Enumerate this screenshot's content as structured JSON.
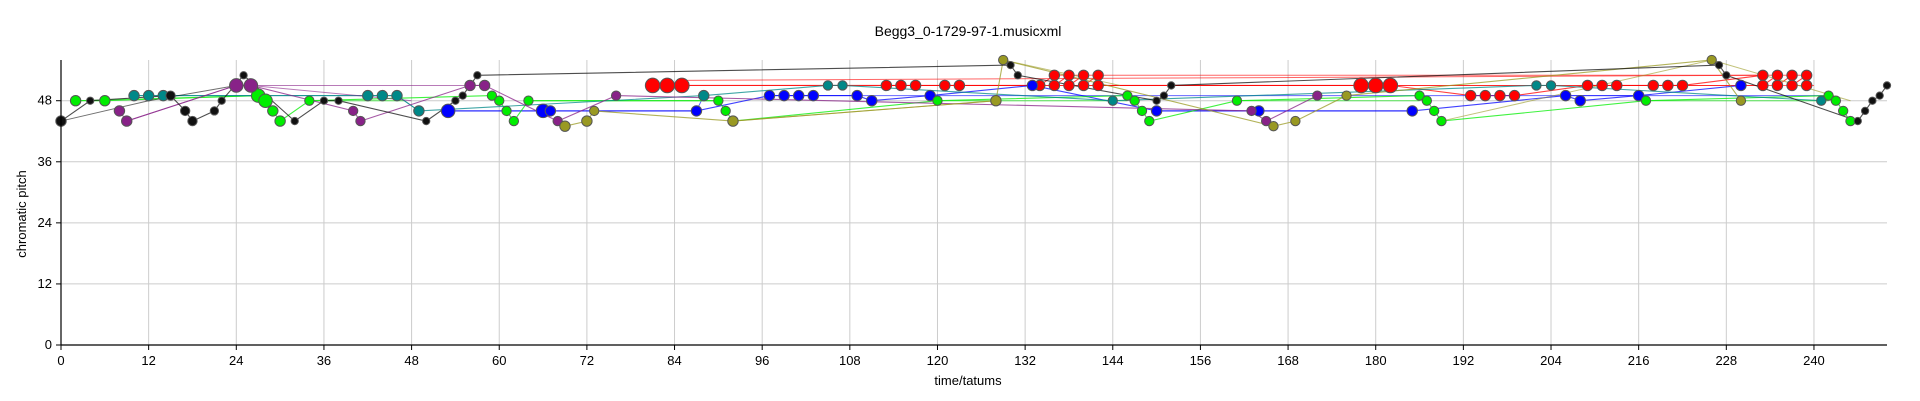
{
  "chart_data": {
    "type": "scatter",
    "title": "Begg3_0-1729-97-1.musicxml",
    "xlabel": "time/tatums",
    "ylabel": "chromatic pitch",
    "xlim": [
      0,
      250
    ],
    "ylim": [
      0,
      56
    ],
    "xticks": [
      0,
      12,
      24,
      36,
      48,
      60,
      72,
      84,
      96,
      108,
      120,
      132,
      144,
      156,
      168,
      180,
      192,
      204,
      216,
      228,
      240
    ],
    "yticks": [
      0,
      12,
      24,
      36,
      48
    ],
    "grid": true,
    "legend": "none",
    "colors": {
      "grid": "#cccccc",
      "axis": "#000000",
      "marker_edge": "#555555"
    },
    "series": [
      {
        "color": "#ff0000",
        "points": [
          {
            "x": 81,
            "y": 51,
            "s": 1.4
          },
          {
            "x": 83,
            "y": 51,
            "s": 1.4
          },
          {
            "x": 85,
            "y": 51,
            "s": 1.4
          },
          {
            "x": 113,
            "y": 51,
            "s": 1
          },
          {
            "x": 115,
            "y": 51,
            "s": 1
          },
          {
            "x": 117,
            "y": 51,
            "s": 1
          },
          {
            "x": 121,
            "y": 51,
            "s": 1
          },
          {
            "x": 123,
            "y": 51,
            "s": 1
          },
          {
            "x": 136,
            "y": 53,
            "s": 1
          },
          {
            "x": 138,
            "y": 53,
            "s": 1
          },
          {
            "x": 140,
            "y": 53,
            "s": 1
          },
          {
            "x": 142,
            "y": 53,
            "s": 1
          },
          {
            "x": 134,
            "y": 51,
            "s": 1
          },
          {
            "x": 136,
            "y": 51,
            "s": 1
          },
          {
            "x": 138,
            "y": 51,
            "s": 1
          },
          {
            "x": 140,
            "y": 51,
            "s": 1
          },
          {
            "x": 142,
            "y": 51,
            "s": 1
          },
          {
            "x": 178,
            "y": 51,
            "s": 1.4
          },
          {
            "x": 180,
            "y": 51,
            "s": 1.4
          },
          {
            "x": 182,
            "y": 51,
            "s": 1.4
          },
          {
            "x": 193,
            "y": 49,
            "s": 1
          },
          {
            "x": 195,
            "y": 49,
            "s": 1
          },
          {
            "x": 197,
            "y": 49,
            "s": 1
          },
          {
            "x": 199,
            "y": 49,
            "s": 1
          },
          {
            "x": 209,
            "y": 51,
            "s": 1
          },
          {
            "x": 211,
            "y": 51,
            "s": 1
          },
          {
            "x": 213,
            "y": 51,
            "s": 1
          },
          {
            "x": 218,
            "y": 51,
            "s": 1
          },
          {
            "x": 220,
            "y": 51,
            "s": 1
          },
          {
            "x": 222,
            "y": 51,
            "s": 1
          },
          {
            "x": 233,
            "y": 53,
            "s": 1
          },
          {
            "x": 235,
            "y": 53,
            "s": 1
          },
          {
            "x": 237,
            "y": 53,
            "s": 1
          },
          {
            "x": 239,
            "y": 53,
            "s": 1
          },
          {
            "x": 233,
            "y": 51,
            "s": 1
          },
          {
            "x": 235,
            "y": 51,
            "s": 1
          },
          {
            "x": 237,
            "y": 51,
            "s": 1
          },
          {
            "x": 239,
            "y": 51,
            "s": 1
          }
        ],
        "links": [
          [
            81,
            51,
            240,
            51
          ],
          [
            85,
            52,
            233,
            53
          ],
          [
            136,
            53,
            239,
            53
          ],
          [
            113,
            51,
            233,
            51
          ]
        ]
      },
      {
        "color": "#0000ff",
        "points": [
          {
            "x": 53,
            "y": 46,
            "s": 1.3
          },
          {
            "x": 66,
            "y": 46,
            "s": 1.3
          },
          {
            "x": 67,
            "y": 46,
            "s": 1
          },
          {
            "x": 87,
            "y": 46,
            "s": 1
          },
          {
            "x": 97,
            "y": 49,
            "s": 1
          },
          {
            "x": 99,
            "y": 49,
            "s": 1
          },
          {
            "x": 101,
            "y": 49,
            "s": 1
          },
          {
            "x": 103,
            "y": 49,
            "s": 1
          },
          {
            "x": 109,
            "y": 49,
            "s": 1
          },
          {
            "x": 111,
            "y": 48,
            "s": 1
          },
          {
            "x": 119,
            "y": 49,
            "s": 1
          },
          {
            "x": 133,
            "y": 51,
            "s": 1
          },
          {
            "x": 150,
            "y": 46,
            "s": 1
          },
          {
            "x": 164,
            "y": 46,
            "s": 1
          },
          {
            "x": 185,
            "y": 46,
            "s": 1
          },
          {
            "x": 206,
            "y": 49,
            "s": 1
          },
          {
            "x": 208,
            "y": 48,
            "s": 1
          },
          {
            "x": 216,
            "y": 49,
            "s": 1
          },
          {
            "x": 230,
            "y": 51,
            "s": 1
          }
        ],
        "links": [
          [
            53,
            46,
            87,
            46
          ],
          [
            87,
            46,
            88,
            49
          ],
          [
            97,
            49,
            119,
            49
          ],
          [
            150,
            46,
            185,
            46
          ],
          [
            119,
            49,
            216,
            49
          ],
          [
            206,
            49,
            242,
            49
          ]
        ]
      },
      {
        "color": "#00ee00",
        "points": [
          {
            "x": 2,
            "y": 48,
            "s": 1
          },
          {
            "x": 6,
            "y": 48,
            "s": 1
          },
          {
            "x": 27,
            "y": 49,
            "s": 1.3
          },
          {
            "x": 28,
            "y": 48,
            "s": 1.3
          },
          {
            "x": 29,
            "y": 46,
            "s": 1
          },
          {
            "x": 30,
            "y": 44,
            "s": 1
          },
          {
            "x": 34,
            "y": 48,
            "s": 0.9
          },
          {
            "x": 59,
            "y": 49,
            "s": 0.9
          },
          {
            "x": 60,
            "y": 48,
            "s": 0.9
          },
          {
            "x": 61,
            "y": 46,
            "s": 0.9
          },
          {
            "x": 62,
            "y": 44,
            "s": 0.9
          },
          {
            "x": 64,
            "y": 48,
            "s": 0.9
          },
          {
            "x": 90,
            "y": 48,
            "s": 0.9
          },
          {
            "x": 91,
            "y": 46,
            "s": 0.9
          },
          {
            "x": 92,
            "y": 44,
            "s": 0.9
          },
          {
            "x": 120,
            "y": 48,
            "s": 0.9
          },
          {
            "x": 146,
            "y": 49,
            "s": 0.9
          },
          {
            "x": 147,
            "y": 48,
            "s": 0.9
          },
          {
            "x": 148,
            "y": 46,
            "s": 0.9
          },
          {
            "x": 149,
            "y": 44,
            "s": 0.9
          },
          {
            "x": 161,
            "y": 48,
            "s": 0.9
          },
          {
            "x": 186,
            "y": 49,
            "s": 0.9
          },
          {
            "x": 187,
            "y": 48,
            "s": 0.9
          },
          {
            "x": 188,
            "y": 46,
            "s": 0.9
          },
          {
            "x": 189,
            "y": 44,
            "s": 0.9
          },
          {
            "x": 217,
            "y": 48,
            "s": 0.9
          },
          {
            "x": 242,
            "y": 49,
            "s": 0.9
          },
          {
            "x": 243,
            "y": 48,
            "s": 0.9
          },
          {
            "x": 244,
            "y": 46,
            "s": 0.9
          },
          {
            "x": 245,
            "y": 44,
            "s": 0.9
          }
        ],
        "links": [
          [
            2,
            48,
            27,
            49
          ],
          [
            34,
            48,
            47,
            48
          ],
          [
            64,
            48,
            90,
            48
          ],
          [
            120,
            48,
            146,
            48
          ],
          [
            161,
            48,
            186,
            48
          ],
          [
            217,
            48,
            242,
            48
          ]
        ]
      },
      {
        "color": "#008888",
        "points": [
          {
            "x": 10,
            "y": 49,
            "s": 1
          },
          {
            "x": 12,
            "y": 49,
            "s": 1
          },
          {
            "x": 14,
            "y": 49,
            "s": 1
          },
          {
            "x": 42,
            "y": 49,
            "s": 1
          },
          {
            "x": 44,
            "y": 49,
            "s": 1
          },
          {
            "x": 46,
            "y": 49,
            "s": 1
          },
          {
            "x": 49,
            "y": 46,
            "s": 1
          },
          {
            "x": 88,
            "y": 49,
            "s": 1
          },
          {
            "x": 105,
            "y": 51,
            "s": 0.9
          },
          {
            "x": 107,
            "y": 51,
            "s": 0.9
          },
          {
            "x": 144,
            "y": 48,
            "s": 0.9
          },
          {
            "x": 202,
            "y": 51,
            "s": 0.9
          },
          {
            "x": 204,
            "y": 51,
            "s": 0.9
          },
          {
            "x": 241,
            "y": 48,
            "s": 0.9
          }
        ],
        "links": [
          [
            10,
            49,
            46,
            49
          ],
          [
            46,
            49,
            49,
            46
          ]
        ]
      },
      {
        "color": "#882288",
        "points": [
          {
            "x": 8,
            "y": 46,
            "s": 1
          },
          {
            "x": 9,
            "y": 44,
            "s": 1
          },
          {
            "x": 24,
            "y": 51,
            "s": 1.3
          },
          {
            "x": 26,
            "y": 51,
            "s": 1.3
          },
          {
            "x": 40,
            "y": 46,
            "s": 0.9
          },
          {
            "x": 41,
            "y": 44,
            "s": 0.9
          },
          {
            "x": 56,
            "y": 51,
            "s": 1
          },
          {
            "x": 58,
            "y": 51,
            "s": 1
          },
          {
            "x": 68,
            "y": 44,
            "s": 0.9
          },
          {
            "x": 76,
            "y": 49,
            "s": 0.9
          },
          {
            "x": 163,
            "y": 46,
            "s": 0.9
          },
          {
            "x": 165,
            "y": 44,
            "s": 0.9
          },
          {
            "x": 172,
            "y": 49,
            "s": 0.9
          }
        ],
        "links": [
          [
            9,
            44,
            24,
            51
          ],
          [
            26,
            51,
            48,
            48
          ],
          [
            24,
            51,
            58,
            51
          ]
        ]
      },
      {
        "color": "#999922",
        "points": [
          {
            "x": 69,
            "y": 43,
            "s": 1
          },
          {
            "x": 72,
            "y": 44,
            "s": 1
          },
          {
            "x": 73,
            "y": 46,
            "s": 0.9
          },
          {
            "x": 92,
            "y": 44,
            "s": 1
          },
          {
            "x": 128,
            "y": 48,
            "s": 1
          },
          {
            "x": 129,
            "y": 56,
            "s": 0.9
          },
          {
            "x": 166,
            "y": 43,
            "s": 0.9
          },
          {
            "x": 169,
            "y": 44,
            "s": 0.9
          },
          {
            "x": 176,
            "y": 49,
            "s": 0.9
          },
          {
            "x": 226,
            "y": 56,
            "s": 0.9
          },
          {
            "x": 230,
            "y": 48,
            "s": 0.9
          }
        ],
        "links": [
          [
            92,
            44,
            128,
            48
          ],
          [
            129,
            56,
            145,
            51
          ],
          [
            189,
            44,
            226,
            56
          ],
          [
            226,
            56,
            245,
            48
          ]
        ]
      },
      {
        "color": "#111111",
        "points": [
          {
            "x": 0,
            "y": 44,
            "s": 1
          },
          {
            "x": 4,
            "y": 48,
            "s": 0.7
          },
          {
            "x": 15,
            "y": 49,
            "s": 0.9
          },
          {
            "x": 17,
            "y": 46,
            "s": 0.9
          },
          {
            "x": 18,
            "y": 44,
            "s": 0.9
          },
          {
            "x": 21,
            "y": 46,
            "s": 0.8
          },
          {
            "x": 22,
            "y": 48,
            "s": 0.7
          },
          {
            "x": 25,
            "y": 53,
            "s": 0.7
          },
          {
            "x": 32,
            "y": 44,
            "s": 0.7
          },
          {
            "x": 36,
            "y": 48,
            "s": 0.7
          },
          {
            "x": 38,
            "y": 48,
            "s": 0.7
          },
          {
            "x": 50,
            "y": 44,
            "s": 0.7
          },
          {
            "x": 54,
            "y": 48,
            "s": 0.7
          },
          {
            "x": 55,
            "y": 49,
            "s": 0.7
          },
          {
            "x": 57,
            "y": 53,
            "s": 0.7
          },
          {
            "x": 130,
            "y": 55,
            "s": 0.7
          },
          {
            "x": 131,
            "y": 53,
            "s": 0.7
          },
          {
            "x": 150,
            "y": 48,
            "s": 0.7
          },
          {
            "x": 151,
            "y": 49,
            "s": 0.7
          },
          {
            "x": 152,
            "y": 51,
            "s": 0.7
          },
          {
            "x": 227,
            "y": 55,
            "s": 0.7
          },
          {
            "x": 228,
            "y": 53,
            "s": 0.7
          },
          {
            "x": 246,
            "y": 44,
            "s": 0.7
          },
          {
            "x": 247,
            "y": 46,
            "s": 0.7
          },
          {
            "x": 248,
            "y": 48,
            "s": 0.7
          },
          {
            "x": 249,
            "y": 49,
            "s": 0.7
          },
          {
            "x": 250,
            "y": 51,
            "s": 0.7
          }
        ],
        "links": [
          [
            0,
            44,
            12,
            48
          ],
          [
            12,
            48,
            24,
            51
          ]
        ]
      }
    ]
  }
}
